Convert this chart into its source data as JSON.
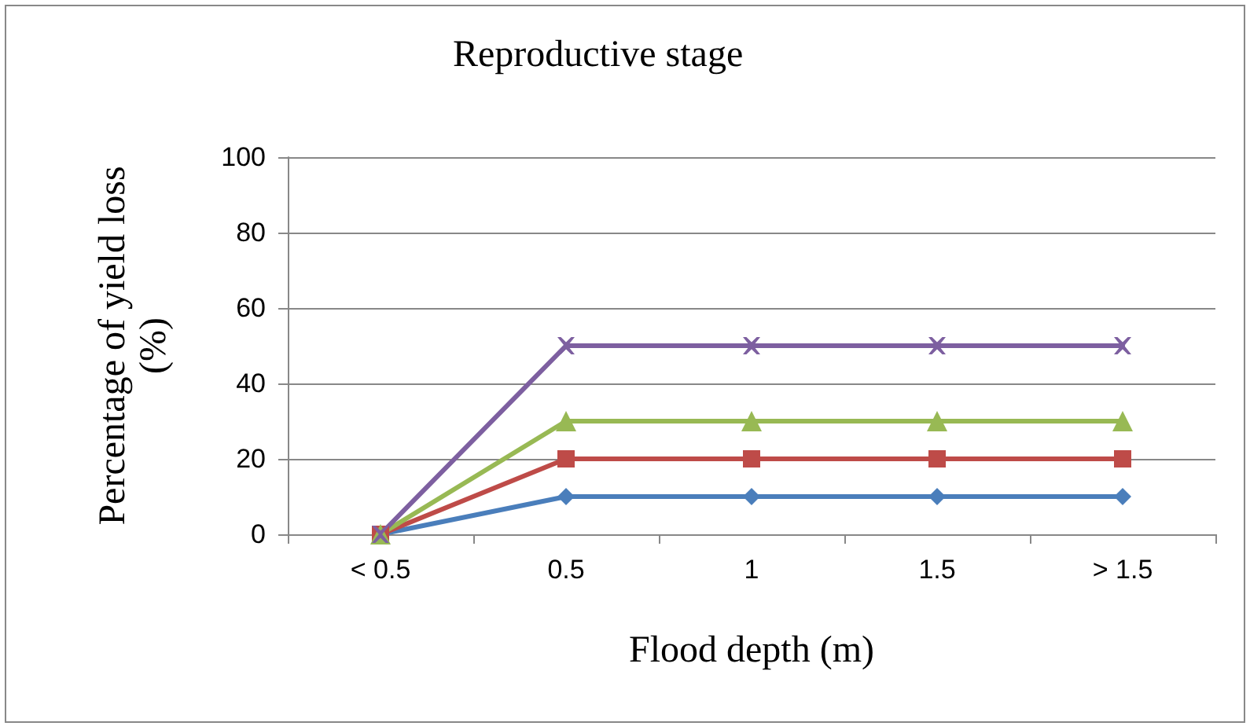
{
  "chart_data": {
    "type": "line",
    "title": "Reproductive stage",
    "xlabel": "Flood depth (m)",
    "ylabel": "Percentage of yield loss (%)",
    "categories": [
      "< 0.5",
      "0.5",
      "1",
      "1.5",
      "> 1.5"
    ],
    "series": [
      {
        "color": "#4a7ebb",
        "marker": "diamond",
        "values": [
          0,
          10,
          10,
          10,
          10
        ]
      },
      {
        "color": "#be4b48",
        "marker": "square",
        "values": [
          0,
          20,
          20,
          20,
          20
        ]
      },
      {
        "color": "#98b954",
        "marker": "triangle",
        "values": [
          0,
          30,
          30,
          30,
          30
        ]
      },
      {
        "color": "#7d5fa0",
        "marker": "cross",
        "values": [
          0,
          50,
          50,
          50,
          50
        ]
      }
    ],
    "ylim": [
      0,
      100
    ],
    "yticks": [
      0,
      20,
      40,
      60,
      80,
      100
    ],
    "grid": "y",
    "line_style": "solid"
  }
}
